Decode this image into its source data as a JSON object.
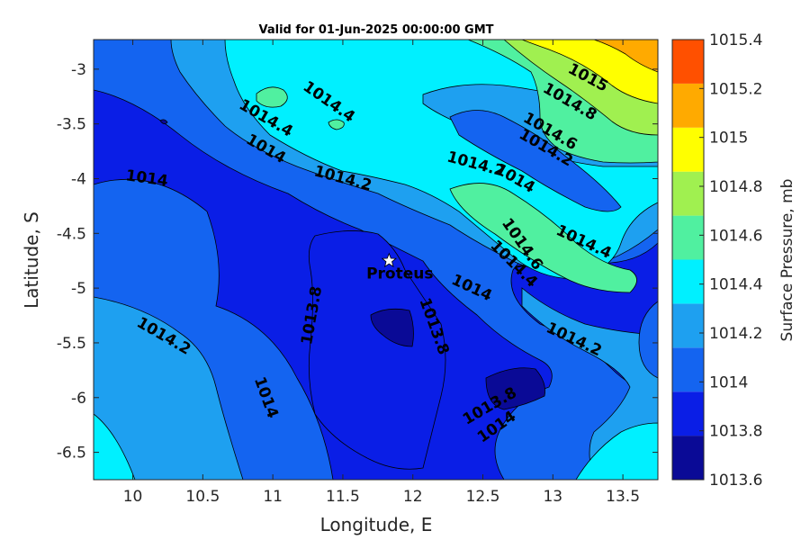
{
  "chart_data": {
    "type": "heatmap",
    "subtype": "filled-contour",
    "title": "Valid for 01-Jun-2025 00:00:00 GMT",
    "xlabel": "Longitude, E",
    "ylabel": "Latitude, S",
    "xlim": [
      9.72,
      13.75
    ],
    "ylim": [
      -6.75,
      -2.73
    ],
    "xticks": [
      "10",
      "10.5",
      "11",
      "11.5",
      "12",
      "12.5",
      "13",
      "13.5"
    ],
    "yticks": [
      "-3",
      "-3.5",
      "-4",
      "-4.5",
      "-5",
      "-5.5",
      "-6",
      "-6.5"
    ],
    "colorbar": {
      "label": "Surface Pressure, mb",
      "ticks": [
        "1015.4",
        "1015.2",
        "1015",
        "1014.8",
        "1014.6",
        "1014.4",
        "1014.2",
        "1014",
        "1013.8",
        "1013.6"
      ],
      "levels": [
        1013.6,
        1013.8,
        1014.0,
        1014.2,
        1014.4,
        1014.6,
        1014.8,
        1015.0,
        1015.2,
        1015.4
      ],
      "colors": [
        "#0a0a96",
        "#0a1ee6",
        "#1464f0",
        "#1ea0f0",
        "#00f0ff",
        "#50f0a0",
        "#a0f050",
        "#ffff00",
        "#ffaa00",
        "#ff5000"
      ]
    },
    "contour_labels": [
      {
        "text": "1015",
        "lon": 13.25,
        "lat": -3.08
      },
      {
        "text": "1014.8",
        "lon": 13.12,
        "lat": -3.3
      },
      {
        "text": "1014.6",
        "lon": 12.98,
        "lat": -3.57
      },
      {
        "text": "1014.2",
        "lon": 12.95,
        "lat": -3.72
      },
      {
        "text": "1014.4",
        "lon": 11.4,
        "lat": -3.3
      },
      {
        "text": "1014.4",
        "lon": 10.95,
        "lat": -3.45
      },
      {
        "text": "1014",
        "lon": 10.95,
        "lat": -3.73
      },
      {
        "text": "1014",
        "lon": 10.1,
        "lat": -4.0
      },
      {
        "text": "1014.2",
        "lon": 11.5,
        "lat": -4.0
      },
      {
        "text": "1014.2",
        "lon": 12.45,
        "lat": -3.87
      },
      {
        "text": "1014",
        "lon": 12.73,
        "lat": -4.0
      },
      {
        "text": "1014.6",
        "lon": 12.78,
        "lat": -4.6
      },
      {
        "text": "1014.4",
        "lon": 12.72,
        "lat": -4.78
      },
      {
        "text": "1014.4",
        "lon": 13.22,
        "lat": -4.58
      },
      {
        "text": "1014",
        "lon": 12.42,
        "lat": -5.0
      },
      {
        "text": "1013.8",
        "lon": 11.28,
        "lat": -5.25
      },
      {
        "text": "1013.8",
        "lon": 12.15,
        "lat": -5.35
      },
      {
        "text": "1014.2",
        "lon": 10.22,
        "lat": -5.44
      },
      {
        "text": "1014.2",
        "lon": 13.15,
        "lat": -5.47
      },
      {
        "text": "1014",
        "lon": 10.95,
        "lat": -6.0
      },
      {
        "text": "1013.8",
        "lon": 12.55,
        "lat": -6.08
      },
      {
        "text": "1014",
        "lon": 12.6,
        "lat": -6.27
      }
    ],
    "markers": [
      {
        "label": "Proteus",
        "symbol": "star",
        "lon": 11.83,
        "lat": -4.75
      }
    ]
  }
}
